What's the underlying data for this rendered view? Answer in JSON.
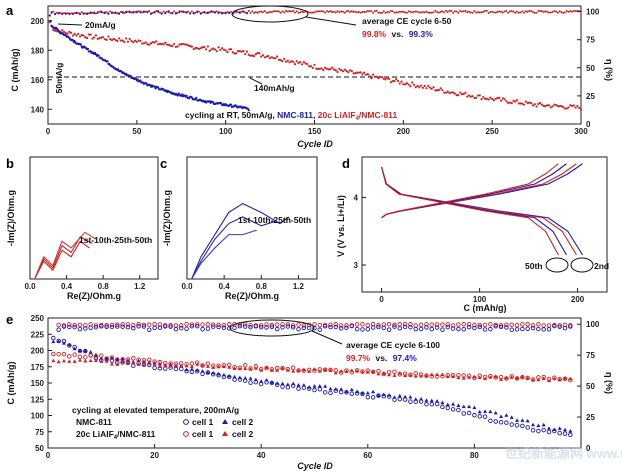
{
  "panel_a": {
    "letter": "a",
    "ylabel": "C (mAh/g)",
    "ylabel_right": "η (%)",
    "xlabel": "Cycle ID",
    "x_ticks": [
      "0",
      "50",
      "100",
      "150",
      "200",
      "250",
      "300"
    ],
    "y_ticks": [
      "140",
      "160",
      "180",
      "200"
    ],
    "y2_ticks": [
      "0",
      "25",
      "50",
      "75",
      "100"
    ],
    "ann_rate_20": "20mA/g",
    "ann_rate_50": "50mA/g",
    "ann_140": "140mAh/g",
    "ce_title": "average CE cycle 6-50",
    "ce_red": "99.8%",
    "ce_vs": "vs.",
    "ce_blue": "99.3%",
    "caption_pre": "cycling at RT, 50mA/g, ",
    "caption_blue": "NMC-811",
    "caption_sep": ", ",
    "caption_red": "20c LiAlF",
    "caption_red_sub": "4",
    "caption_red_post": "/NMC-811"
  },
  "panel_b": {
    "letter": "b",
    "ylabel": "-Im(Z)/Ohm.g",
    "xlabel": "Re(Z)/Ohm.g",
    "x_ticks": [
      "0.0",
      "0.4",
      "0.8",
      "1.2"
    ],
    "ann": "1st-10th-25th-50th"
  },
  "panel_c": {
    "letter": "c",
    "ylabel": "-Im(Z)/Ohm.g",
    "xlabel": "Re(Z)/Ohm.g",
    "x_ticks": [
      "0.0",
      "0.4",
      "0.8",
      "1.2"
    ],
    "ann": "1st-10th-25th-50th"
  },
  "panel_d": {
    "letter": "d",
    "ylabel": "V (V vs. Li+/Li)",
    "xlabel": "C (mAh/g)",
    "x_ticks": [
      "0",
      "100",
      "200"
    ],
    "y_ticks": [
      "3",
      "4"
    ],
    "ann_50": "50th",
    "ann_2": "2nd"
  },
  "panel_e": {
    "letter": "e",
    "ylabel": "C (mAh/g)",
    "ylabel_right": "η (%)",
    "xlabel": "Cycle ID",
    "x_ticks": [
      "0",
      "20",
      "40",
      "60",
      "80"
    ],
    "y_ticks": [
      "50",
      "75",
      "100",
      "125",
      "150",
      "175",
      "200",
      "225",
      "250"
    ],
    "y2_ticks": [
      "0",
      "25",
      "50",
      "75",
      "100"
    ],
    "ce_title": "average CE cycle 6-100",
    "ce_red": "99.7%",
    "ce_vs": "vs.",
    "ce_blue": "97.4%",
    "caption": "cycling at elevated temperature, 200mA/g",
    "legend_blue": "NMC-811",
    "legend_red_pre": "20c LiAlF",
    "legend_red_sub": "4",
    "legend_red_post": "/NMC-811",
    "cell1": "cell 1",
    "cell2": "cell 2"
  },
  "watermark": "世纪新能源网 www.ne21.com",
  "colors": {
    "red": "#d42020",
    "blue": "#1a1ab4",
    "dark": "#111111"
  },
  "chart_data": [
    {
      "type": "scatter",
      "panel": "a",
      "x_range": [
        0,
        300
      ],
      "y_range": [
        130,
        210
      ],
      "y2_range": [
        0,
        105
      ],
      "series": [
        {
          "name": "NMC-811",
          "axis": "left",
          "x": [
            1,
            2,
            5,
            10,
            20,
            30,
            40,
            50,
            60,
            70,
            80,
            90,
            100,
            110,
            113
          ],
          "y": [
            203,
            197,
            194,
            190,
            182,
            175,
            166,
            160,
            155,
            151,
            148,
            145,
            143,
            141,
            140
          ]
        },
        {
          "name": "20c LiAlF4/NMC-811",
          "axis": "left",
          "x": [
            1,
            2,
            5,
            10,
            25,
            50,
            75,
            100,
            125,
            150,
            175,
            200,
            225,
            250,
            275,
            300
          ],
          "y": [
            199,
            196,
            193,
            192,
            189,
            186,
            183,
            180,
            176,
            169,
            164,
            158,
            152,
            147,
            143,
            141
          ]
        },
        {
          "axis": "right",
          "x": [
            2,
            50,
            100,
            150,
            200,
            250,
            300
          ],
          "y": [
            99,
            99.5,
            99.7,
            99.8,
            99.8,
            99.8,
            99.8
          ]
        }
      ]
    },
    {
      "type": "line",
      "panel": "b",
      "x_range": [
        0,
        1.4
      ],
      "series": [
        {
          "x": [
            0.05,
            0.15,
            0.25,
            0.35,
            0.45,
            0.55,
            0.65
          ],
          "y": [
            0.0,
            0.08,
            0.04,
            0.13,
            0.1,
            0.17,
            0.14
          ]
        },
        {
          "x": [
            0.05,
            0.15,
            0.25,
            0.35,
            0.45,
            0.55,
            0.68
          ],
          "y": [
            0.0,
            0.09,
            0.05,
            0.15,
            0.12,
            0.19,
            0.16
          ]
        },
        {
          "x": [
            0.05,
            0.15,
            0.25,
            0.35,
            0.45,
            0.6,
            0.72
          ],
          "y": [
            0.0,
            0.1,
            0.06,
            0.17,
            0.14,
            0.21,
            0.18
          ]
        }
      ]
    },
    {
      "type": "line",
      "panel": "c",
      "x_range": [
        0,
        1.4
      ],
      "series": [
        {
          "x": [
            0.05,
            0.15,
            0.3,
            0.45,
            0.6,
            0.8,
            1.0,
            1.1
          ],
          "y": [
            0.0,
            0.1,
            0.2,
            0.3,
            0.34,
            0.3,
            0.25,
            0.28
          ]
        },
        {
          "x": [
            0.05,
            0.15,
            0.3,
            0.45,
            0.6,
            0.8,
            0.95
          ],
          "y": [
            0.0,
            0.08,
            0.18,
            0.25,
            0.28,
            0.24,
            0.26
          ]
        },
        {
          "x": [
            0.05,
            0.15,
            0.3,
            0.45,
            0.6,
            0.75
          ],
          "y": [
            0.0,
            0.07,
            0.14,
            0.2,
            0.2,
            0.22
          ]
        }
      ]
    },
    {
      "type": "line",
      "panel": "d",
      "x_range": [
        -20,
        230
      ],
      "y_range": [
        2.6,
        4.6
      ],
      "series": [
        {
          "x": [
            0,
            5,
            20,
            60,
            120,
            170,
            190,
            205
          ],
          "y": [
            3.7,
            3.75,
            3.8,
            3.9,
            4.05,
            4.2,
            4.35,
            4.5
          ]
        },
        {
          "x": [
            0,
            5,
            20,
            60,
            120,
            170,
            190,
            205
          ],
          "y": [
            4.45,
            4.2,
            4.05,
            3.95,
            3.8,
            3.7,
            3.5,
            3.15
          ]
        }
      ]
    },
    {
      "type": "scatter",
      "panel": "e",
      "x_range": [
        0,
        100
      ],
      "y_range": [
        50,
        250
      ],
      "y2_range": [
        0,
        105
      ],
      "series": [
        {
          "name": "NMC-811 cell 1",
          "axis": "left",
          "x": [
            1,
            10,
            20,
            30,
            40,
            50,
            60,
            70,
            80,
            90,
            98
          ],
          "y": [
            220,
            185,
            175,
            165,
            150,
            140,
            130,
            122,
            100,
            80,
            72
          ]
        },
        {
          "name": "NMC-811 cell 2",
          "axis": "left",
          "x": [
            1,
            10,
            20,
            30,
            40,
            50,
            60,
            70,
            80,
            90,
            98
          ],
          "y": [
            215,
            190,
            180,
            168,
            155,
            145,
            135,
            125,
            110,
            90,
            75
          ]
        },
        {
          "name": "20c LiAlF4/NMC-811 cell 1",
          "axis": "left",
          "x": [
            1,
            10,
            20,
            30,
            40,
            50,
            60,
            70,
            80,
            90,
            98
          ],
          "y": [
            195,
            190,
            184,
            178,
            174,
            170,
            167,
            163,
            160,
            158,
            156
          ]
        },
        {
          "name": "20c LiAlF4/NMC-811 cell 2",
          "axis": "left",
          "x": [
            1,
            10,
            20,
            30,
            40,
            50,
            60,
            70,
            80,
            90,
            98
          ],
          "y": [
            185,
            182,
            178,
            176,
            172,
            169,
            166,
            162,
            159,
            157,
            155
          ]
        }
      ]
    }
  ]
}
